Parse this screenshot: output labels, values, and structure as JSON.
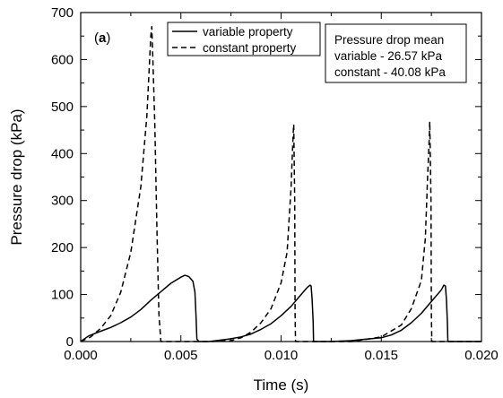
{
  "chart_data": {
    "type": "line",
    "panel_label": {
      "open": "(",
      "letter": "a",
      "close": ")"
    },
    "xlabel": "Time (s)",
    "ylabel": "Pressure drop (kPa)",
    "xlim": [
      0.0,
      0.02
    ],
    "ylim": [
      0,
      700
    ],
    "xticks": [
      "0.000",
      "0.005",
      "0.010",
      "0.015",
      "0.020"
    ],
    "yticks": [
      "0",
      "100",
      "200",
      "300",
      "400",
      "500",
      "600",
      "700"
    ],
    "legend_position": "top-center",
    "series": [
      {
        "name": "variable property",
        "style": "solid",
        "color": "#000000",
        "points": [
          [
            0.0,
            0
          ],
          [
            0.0004,
            12
          ],
          [
            0.001,
            22
          ],
          [
            0.0015,
            30
          ],
          [
            0.002,
            40
          ],
          [
            0.0025,
            52
          ],
          [
            0.003,
            68
          ],
          [
            0.0035,
            88
          ],
          [
            0.004,
            106
          ],
          [
            0.0045,
            124
          ],
          [
            0.005,
            137
          ],
          [
            0.0052,
            141
          ],
          [
            0.0054,
            138
          ],
          [
            0.0056,
            128
          ],
          [
            0.0057,
            105
          ],
          [
            0.00575,
            60
          ],
          [
            0.0058,
            5
          ],
          [
            0.0059,
            0
          ],
          [
            0.0064,
            0
          ],
          [
            0.007,
            3
          ],
          [
            0.0075,
            6
          ],
          [
            0.008,
            10
          ],
          [
            0.0085,
            16
          ],
          [
            0.009,
            26
          ],
          [
            0.0095,
            38
          ],
          [
            0.01,
            55
          ],
          [
            0.0105,
            75
          ],
          [
            0.011,
            100
          ],
          [
            0.0113,
            115
          ],
          [
            0.01145,
            120
          ],
          [
            0.0115,
            118
          ],
          [
            0.01155,
            90
          ],
          [
            0.0116,
            40
          ],
          [
            0.01162,
            0
          ],
          [
            0.0125,
            0
          ],
          [
            0.0135,
            2
          ],
          [
            0.014,
            4
          ],
          [
            0.015,
            8
          ],
          [
            0.0155,
            14
          ],
          [
            0.016,
            24
          ],
          [
            0.0165,
            40
          ],
          [
            0.017,
            60
          ],
          [
            0.0175,
            85
          ],
          [
            0.018,
            110
          ],
          [
            0.01812,
            120
          ],
          [
            0.0182,
            118
          ],
          [
            0.01825,
            90
          ],
          [
            0.0183,
            40
          ],
          [
            0.01832,
            0
          ],
          [
            0.02,
            0
          ]
        ]
      },
      {
        "name": "constant property",
        "style": "dashed",
        "color": "#000000",
        "points": [
          [
            0.0,
            0
          ],
          [
            0.0005,
            10
          ],
          [
            0.001,
            28
          ],
          [
            0.0015,
            55
          ],
          [
            0.002,
            105
          ],
          [
            0.0025,
            190
          ],
          [
            0.003,
            330
          ],
          [
            0.0033,
            480
          ],
          [
            0.0035,
            650
          ],
          [
            0.00355,
            670
          ],
          [
            0.0036,
            600
          ],
          [
            0.0037,
            460
          ],
          [
            0.0038,
            250
          ],
          [
            0.0039,
            60
          ],
          [
            0.004,
            0
          ],
          [
            0.0065,
            0
          ],
          [
            0.0075,
            2
          ],
          [
            0.008,
            8
          ],
          [
            0.0085,
            20
          ],
          [
            0.009,
            40
          ],
          [
            0.0095,
            70
          ],
          [
            0.01,
            125
          ],
          [
            0.0103,
            190
          ],
          [
            0.0105,
            330
          ],
          [
            0.0106,
            440
          ],
          [
            0.01063,
            462
          ],
          [
            0.01068,
            300
          ],
          [
            0.0107,
            60
          ],
          [
            0.01072,
            0
          ],
          [
            0.0135,
            0
          ],
          [
            0.014,
            3
          ],
          [
            0.015,
            10
          ],
          [
            0.016,
            35
          ],
          [
            0.0165,
            70
          ],
          [
            0.017,
            130
          ],
          [
            0.0172,
            220
          ],
          [
            0.0173,
            340
          ],
          [
            0.0174,
            440
          ],
          [
            0.01742,
            468
          ],
          [
            0.01748,
            300
          ],
          [
            0.0175,
            60
          ],
          [
            0.01752,
            0
          ],
          [
            0.02,
            0
          ]
        ]
      }
    ],
    "annotation": {
      "lines": [
        "Pressure drop mean",
        "variable - 26.57 kPa",
        "constant - 40.08 kPa"
      ]
    }
  }
}
